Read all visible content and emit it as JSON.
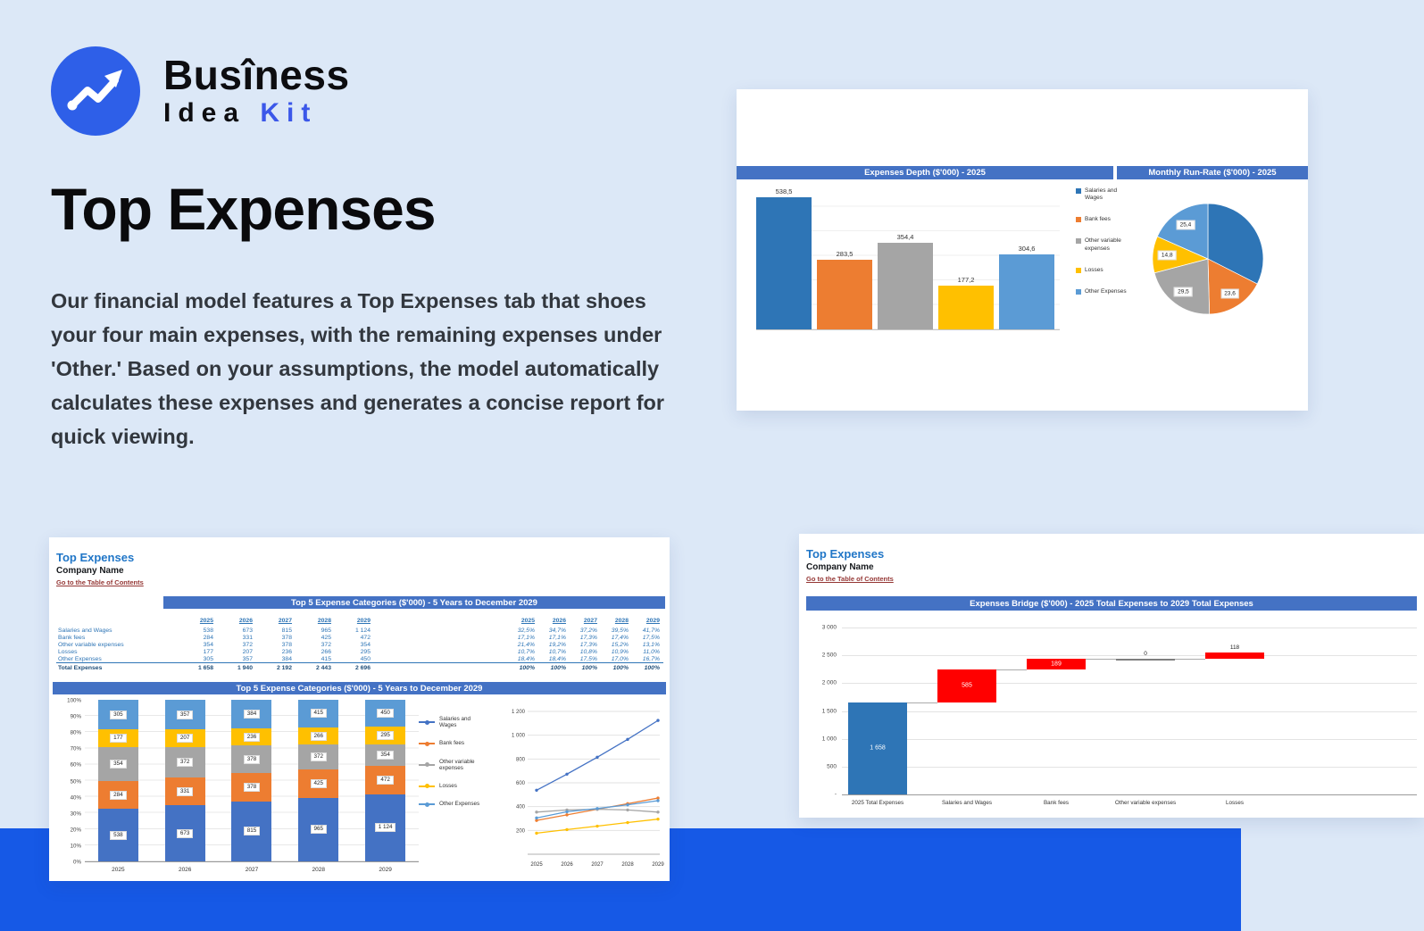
{
  "page": {
    "background": "#dce8f7",
    "band_color": "#1659e6",
    "header_bar_color": "#4472C4",
    "accent_blue": "#2076C7",
    "link_red": "#953735"
  },
  "logo": {
    "brand_line1": "Busîness",
    "brand_idea": "Idea",
    "brand_kit": "Kit",
    "circle_color": "#2e5fe8"
  },
  "hero": {
    "title": "Top Expenses",
    "paragraph": "Our financial model features a Top Expenses tab that shoes your four main expenses, with the remaining expenses under 'Other.' Based on your assumptions, the model automatically calculates these expenses and generates a concise report for quick viewing."
  },
  "depth_card": {
    "bar_title": "Expenses Depth ($'000) - 2025",
    "pie_title": "Monthly Run-Rate ($'000) - 2025"
  },
  "report_card": {
    "title": "Top Expenses",
    "company": "Company Name",
    "toc": "Go to the Table of Contents",
    "table_title": "Top 5 Expense Categories ($'000) - 5 Years to December 2029",
    "chart_title": "Top 5 Expense Categories ($'000) - 5 Years to December 2029"
  },
  "bridge_card": {
    "title": "Top Expenses",
    "company": "Company Name",
    "toc": "Go to the Table of Contents",
    "chart_title": "Expenses Bridge ($'000) - 2025 Total Expenses to 2029 Total Expenses"
  },
  "report_table": {
    "years": [
      "2025",
      "2026",
      "2027",
      "2028",
      "2029"
    ],
    "rows": [
      {
        "label": "Salaries and Wages",
        "values": [
          "538",
          "673",
          "815",
          "965",
          "1 124"
        ],
        "pct": [
          "32,5%",
          "34,7%",
          "37,2%",
          "39,5%",
          "41,7%"
        ]
      },
      {
        "label": "Bank fees",
        "values": [
          "284",
          "331",
          "378",
          "425",
          "472"
        ],
        "pct": [
          "17,1%",
          "17,1%",
          "17,3%",
          "17,4%",
          "17,5%"
        ]
      },
      {
        "label": "Other variable expenses",
        "values": [
          "354",
          "372",
          "378",
          "372",
          "354"
        ],
        "pct": [
          "21,4%",
          "19,2%",
          "17,3%",
          "15,2%",
          "13,1%"
        ]
      },
      {
        "label": "Losses",
        "values": [
          "177",
          "207",
          "236",
          "266",
          "295"
        ],
        "pct": [
          "10,7%",
          "10,7%",
          "10,8%",
          "10,9%",
          "11,0%"
        ]
      },
      {
        "label": "Other Expenses",
        "values": [
          "305",
          "357",
          "384",
          "415",
          "450"
        ],
        "pct": [
          "18,4%",
          "18,4%",
          "17,5%",
          "17,0%",
          "16,7%"
        ]
      }
    ],
    "total": {
      "label": "Total Expenses",
      "values": [
        "1 658",
        "1 940",
        "2 192",
        "2 443",
        "2 696"
      ],
      "pct": [
        "100%",
        "100%",
        "100%",
        "100%",
        "100%"
      ]
    }
  },
  "chart_data": [
    {
      "id": "depth_bar",
      "type": "bar",
      "title": "Expenses Depth ($'000) - 2025",
      "categories": [
        "Salaries and Wages",
        "Bank fees",
        "Other variable expenses",
        "Losses",
        "Other Expenses"
      ],
      "values": [
        538.5,
        283.5,
        354.4,
        177.2,
        304.6
      ],
      "value_labels": [
        "538,5",
        "283,5",
        "354,4",
        "177,2",
        "304,6"
      ],
      "colors": [
        "#2E75B6",
        "#ED7D31",
        "#A5A5A5",
        "#FFC000",
        "#5B9BD5"
      ],
      "ylim": [
        0,
        600
      ],
      "legend_position": "right"
    },
    {
      "id": "runrate_pie",
      "type": "pie",
      "title": "Monthly Run-Rate ($'000) - 2025",
      "slices": [
        {
          "label": "Salaries and Wages",
          "value": 44.9,
          "value_label": "44,9",
          "color": "#2E75B6",
          "label_visible": false
        },
        {
          "label": "Bank fees",
          "value": 23.6,
          "value_label": "23,6",
          "color": "#ED7D31",
          "label_visible": true
        },
        {
          "label": "Other variable expenses",
          "value": 29.5,
          "value_label": "29,5",
          "color": "#A5A5A5",
          "label_visible": true
        },
        {
          "label": "Losses",
          "value": 14.8,
          "value_label": "14,8",
          "color": "#FFC000",
          "label_visible": true
        },
        {
          "label": "Other Expenses",
          "value": 25.4,
          "value_label": "25,4",
          "color": "#5B9BD5",
          "label_visible": true
        }
      ]
    },
    {
      "id": "stacked_expenses",
      "type": "bar",
      "stacked": true,
      "stacked_100": true,
      "title": "Top 5 Expense Categories ($'000) - 5 Years to December 2029",
      "categories": [
        "2025",
        "2026",
        "2027",
        "2028",
        "2029"
      ],
      "y_axis_labels": [
        "100%",
        "90%",
        "80%",
        "70%",
        "60%",
        "50%",
        "40%",
        "30%",
        "20%",
        "10%",
        "0%"
      ],
      "series": [
        {
          "name": "Salaries and Wages",
          "color": "#4472C4",
          "values": [
            538,
            673,
            815,
            965,
            1124
          ],
          "value_labels": [
            "538",
            "673",
            "815",
            "965",
            "1 124"
          ]
        },
        {
          "name": "Bank fees",
          "color": "#ED7D31",
          "values": [
            284,
            331,
            378,
            425,
            472
          ],
          "value_labels": [
            "284",
            "331",
            "378",
            "425",
            "472"
          ]
        },
        {
          "name": "Other variable expenses",
          "color": "#A5A5A5",
          "values": [
            354,
            372,
            378,
            372,
            354
          ],
          "value_labels": [
            "354",
            "372",
            "378",
            "372",
            "354"
          ]
        },
        {
          "name": "Losses",
          "color": "#FFC000",
          "values": [
            177,
            207,
            236,
            266,
            295
          ],
          "value_labels": [
            "177",
            "207",
            "236",
            "266",
            "295"
          ]
        },
        {
          "name": "Other Expenses",
          "color": "#5B9BD5",
          "values": [
            305,
            357,
            384,
            415,
            450
          ],
          "value_labels": [
            "305",
            "357",
            "384",
            "415",
            "450"
          ]
        }
      ]
    },
    {
      "id": "trend_lines",
      "type": "line",
      "x": [
        "2025",
        "2026",
        "2027",
        "2028",
        "2029"
      ],
      "ylim": [
        0,
        1200
      ],
      "y_ticks": [
        1200,
        1000,
        800,
        600,
        400,
        200
      ],
      "y_tick_labels": [
        "1 200",
        "1 000",
        "800",
        "600",
        "400",
        "200"
      ],
      "legend_position": "left",
      "series": [
        {
          "name": "Salaries and Wages",
          "color": "#4472C4",
          "values": [
            538,
            673,
            815,
            965,
            1124
          ]
        },
        {
          "name": "Bank fees",
          "color": "#ED7D31",
          "values": [
            284,
            331,
            378,
            425,
            472
          ]
        },
        {
          "name": "Other variable expenses",
          "color": "#A5A5A5",
          "values": [
            354,
            372,
            378,
            372,
            354
          ]
        },
        {
          "name": "Losses",
          "color": "#FFC000",
          "values": [
            177,
            207,
            236,
            266,
            295
          ]
        },
        {
          "name": "Other Expenses",
          "color": "#5B9BD5",
          "values": [
            305,
            357,
            384,
            415,
            450
          ]
        }
      ]
    },
    {
      "id": "bridge_waterfall",
      "type": "waterfall",
      "title": "Expenses Bridge ($'000) - 2025 Total Expenses to 2029 Total Expenses",
      "ymax": 3000,
      "y_ticks": [
        {
          "value": 3000,
          "label": "3 000"
        },
        {
          "value": 2500,
          "label": "2 500"
        },
        {
          "value": 2000,
          "label": "2 000"
        },
        {
          "value": 1500,
          "label": "1 500"
        },
        {
          "value": 1000,
          "label": "1 000"
        },
        {
          "value": 500,
          "label": "500"
        },
        {
          "value": 0,
          "label": "-"
        }
      ],
      "columns": [
        {
          "label": "2025 Total Expenses",
          "start": 0,
          "end": 1658,
          "color": "#2E75B6",
          "value_label": "1 658"
        },
        {
          "label": "Salaries and Wages",
          "start": 1658,
          "end": 2243,
          "color": "#FF0000",
          "value_label": "585"
        },
        {
          "label": "Bank fees",
          "start": 2243,
          "end": 2432,
          "color": "#FF0000",
          "value_label": "189"
        },
        {
          "label": "Other variable expenses",
          "start": 2432,
          "end": 2432,
          "color": "#7F7F7F",
          "value_label": "0"
        },
        {
          "label": "Losses",
          "start": 2432,
          "end": 2550,
          "color": "#FF0000",
          "value_label": "118"
        }
      ]
    }
  ]
}
